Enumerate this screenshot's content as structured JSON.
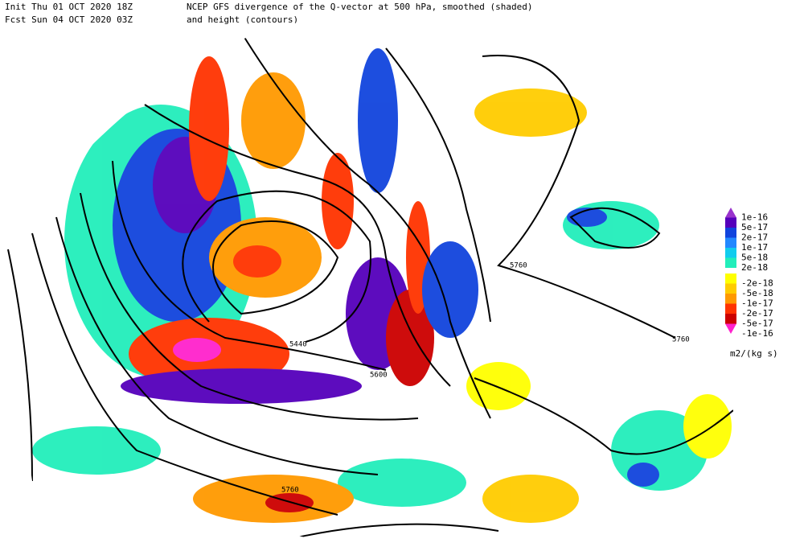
{
  "header": {
    "init": "Init  Thu 01 OCT 2020 18Z",
    "fcst": "Fcst Sun 04 OCT 2020 03Z",
    "title_line1": "NCEP GFS divergence of the Q-vector at 500 hPa, smoothed (shaded)",
    "title_line2": "and height (contours)"
  },
  "legend": {
    "positive": [
      {
        "label": "1e-16",
        "color": "#9933cc"
      },
      {
        "label": "5e-17",
        "color": "#5500bb"
      },
      {
        "label": "2e-17",
        "color": "#1144dd"
      },
      {
        "label": "1e-17",
        "color": "#2288ff"
      },
      {
        "label": "5e-18",
        "color": "#11ccee"
      },
      {
        "label": "2e-18",
        "color": "#22eebb"
      }
    ],
    "negative": [
      {
        "label": "-2e-18",
        "color": "#ffff00"
      },
      {
        "label": "-5e-18",
        "color": "#ffcc00"
      },
      {
        "label": "-1e-17",
        "color": "#ff9900"
      },
      {
        "label": "-2e-17",
        "color": "#ff3300"
      },
      {
        "label": "-5e-17",
        "color": "#cc0000"
      },
      {
        "label": "-1e-16",
        "color": "#ff22cc"
      }
    ],
    "unit": "m2/(kg s)"
  },
  "contour_labels": [
    "5760",
    "5440",
    "5600",
    "5760",
    "5760"
  ]
}
